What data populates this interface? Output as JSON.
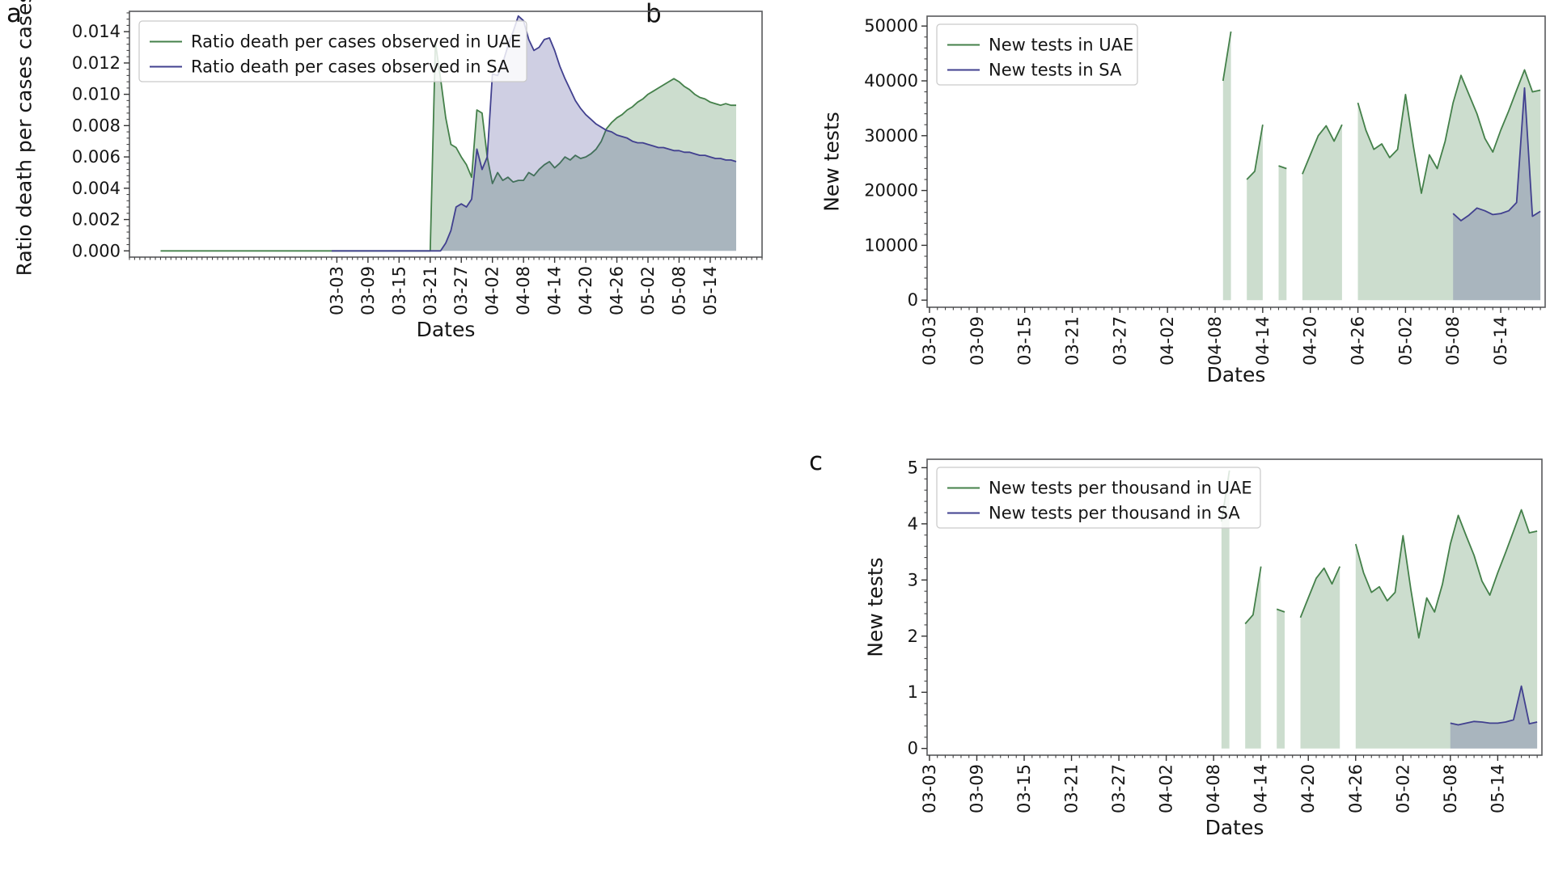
{
  "figure": {
    "background": "#ffffff",
    "panels": [
      {
        "label": "a"
      },
      {
        "label": "b"
      },
      {
        "label": "c"
      }
    ]
  },
  "chart_data": [
    {
      "id": "a",
      "type": "area",
      "panel_label": "a",
      "xlabel": "Dates",
      "ylabel": "Ratio death per cases cases",
      "x_unit": "day index, day 0 = 2020-01-26",
      "xlim": [
        -3,
        119
      ],
      "ylim": [
        -0.0004,
        0.0153
      ],
      "grid": false,
      "legend_position": "upper-left",
      "x_ticks": [
        {
          "i": 37,
          "label": "03-03"
        },
        {
          "i": 43,
          "label": "03-09"
        },
        {
          "i": 49,
          "label": "03-15"
        },
        {
          "i": 55,
          "label": "03-21"
        },
        {
          "i": 61,
          "label": "03-27"
        },
        {
          "i": 67,
          "label": "04-02"
        },
        {
          "i": 73,
          "label": "04-08"
        },
        {
          "i": 79,
          "label": "04-14"
        },
        {
          "i": 85,
          "label": "04-20"
        },
        {
          "i": 91,
          "label": "04-26"
        },
        {
          "i": 97,
          "label": "05-02"
        },
        {
          "i": 103,
          "label": "05-08"
        },
        {
          "i": 109,
          "label": "05-14"
        }
      ],
      "y_ticks": [
        {
          "v": 0,
          "label": "0.000"
        },
        {
          "v": 0.002,
          "label": "0.002"
        },
        {
          "v": 0.004,
          "label": "0.004"
        },
        {
          "v": 0.006,
          "label": "0.006"
        },
        {
          "v": 0.008,
          "label": "0.008"
        },
        {
          "v": 0.01,
          "label": "0.010"
        },
        {
          "v": 0.012,
          "label": "0.012"
        },
        {
          "v": 0.014,
          "label": "0.014"
        }
      ],
      "y_minor_step": 0.0004,
      "y_major_step": 0.002,
      "series": [
        {
          "key": "uae",
          "name": "Ratio death per cases observed in UAE",
          "color": "#44804a",
          "fill": "rgba(68,128,74,0.27)",
          "x0": 3,
          "values": [
            0,
            0,
            0,
            0,
            0,
            0,
            0,
            0,
            0,
            0,
            0,
            0,
            0,
            0,
            0,
            0,
            0,
            0,
            0,
            0,
            0,
            0,
            0,
            0,
            0,
            0,
            0,
            0,
            0,
            0,
            0,
            0,
            0,
            0,
            0,
            0,
            0,
            0,
            0,
            0,
            0,
            0,
            0,
            0,
            0,
            0,
            0,
            0,
            0,
            0,
            0,
            0,
            0,
            0.0133,
            0.011,
            0.0085,
            0.0068,
            0.0066,
            0.006,
            0.0055,
            0.0047,
            0.009,
            0.0088,
            0.006,
            0.0043,
            0.005,
            0.0045,
            0.0047,
            0.0044,
            0.0045,
            0.0045,
            0.005,
            0.0048,
            0.0052,
            0.0055,
            0.0057,
            0.0053,
            0.0056,
            0.006,
            0.0058,
            0.0061,
            0.0059,
            0.006,
            0.0062,
            0.0065,
            0.007,
            0.0078,
            0.0082,
            0.0085,
            0.0087,
            0.009,
            0.0092,
            0.0095,
            0.0097,
            0.01,
            0.0102,
            0.0104,
            0.0106,
            0.0108,
            0.011,
            0.0108,
            0.0105,
            0.0103,
            0.01,
            0.0098,
            0.0097,
            0.0095,
            0.0094,
            0.0093,
            0.0094,
            0.0093,
            0.0093
          ]
        },
        {
          "key": "sa",
          "name": "Ratio death per cases observed in SA",
          "color": "#41408f",
          "fill": "rgba(65,64,143,0.25)",
          "x0": 36,
          "values": [
            0,
            0,
            0,
            0,
            0,
            0,
            0,
            0,
            0,
            0,
            0,
            0,
            0,
            0,
            0,
            0,
            0,
            0,
            0,
            0,
            0,
            0,
            0.0005,
            0.0013,
            0.0028,
            0.003,
            0.0028,
            0.0033,
            0.0065,
            0.0052,
            0.006,
            0.0113,
            0.0112,
            0.012,
            0.0131,
            0.014,
            0.015,
            0.0147,
            0.0135,
            0.0128,
            0.013,
            0.0135,
            0.0136,
            0.0128,
            0.0118,
            0.011,
            0.0103,
            0.0096,
            0.0091,
            0.0087,
            0.0084,
            0.0081,
            0.0079,
            0.0077,
            0.0076,
            0.0074,
            0.0073,
            0.0072,
            0.007,
            0.0069,
            0.0069,
            0.0068,
            0.0067,
            0.0066,
            0.0066,
            0.0065,
            0.0064,
            0.0064,
            0.0063,
            0.0063,
            0.0062,
            0.0061,
            0.0061,
            0.006,
            0.0059,
            0.0059,
            0.0058,
            0.0058,
            0.0057
          ]
        }
      ]
    },
    {
      "id": "b",
      "type": "area",
      "panel_label": "b",
      "xlabel": "Dates",
      "ylabel": "New tests",
      "x_unit": "day index, day 0 = 2020-03-02",
      "xlim": [
        0.7,
        78.6
      ],
      "ylim": [
        -1300,
        51800
      ],
      "grid": false,
      "legend_position": "upper-left",
      "x_ticks": [
        {
          "i": 1,
          "label": "03-03"
        },
        {
          "i": 7,
          "label": "03-09"
        },
        {
          "i": 13,
          "label": "03-15"
        },
        {
          "i": 19,
          "label": "03-21"
        },
        {
          "i": 25,
          "label": "03-27"
        },
        {
          "i": 31,
          "label": "04-02"
        },
        {
          "i": 37,
          "label": "04-08"
        },
        {
          "i": 43,
          "label": "04-14"
        },
        {
          "i": 49,
          "label": "04-20"
        },
        {
          "i": 55,
          "label": "04-26"
        },
        {
          "i": 61,
          "label": "05-02"
        },
        {
          "i": 67,
          "label": "05-08"
        },
        {
          "i": 73,
          "label": "05-14"
        }
      ],
      "y_ticks": [
        {
          "v": 0,
          "label": "0"
        },
        {
          "v": 10000,
          "label": "10000"
        },
        {
          "v": 20000,
          "label": "20000"
        },
        {
          "v": 30000,
          "label": "30000"
        },
        {
          "v": 40000,
          "label": "40000"
        },
        {
          "v": 50000,
          "label": "50000"
        }
      ],
      "y_minor_step": 2000,
      "y_major_step": 10000,
      "series": [
        {
          "key": "uae",
          "name": "New tests in UAE",
          "color": "#44804a",
          "fill": "rgba(68,128,74,0.27)",
          "x0": 38,
          "values": [
            40000,
            49000,
            null,
            22000,
            23500,
            32000,
            null,
            24500,
            24000,
            null,
            23000,
            26500,
            30000,
            31800,
            29000,
            32000,
            null,
            36000,
            31000,
            27500,
            28500,
            26000,
            27500,
            37500,
            28000,
            19500,
            26500,
            24000,
            29000,
            36000,
            41000,
            37500,
            34000,
            29500,
            27000,
            31000,
            34500,
            38300,
            42000,
            38000,
            38300
          ]
        },
        {
          "key": "sa",
          "name": "New tests in SA",
          "color": "#41408f",
          "fill": "rgba(65,64,143,0.25)",
          "x0": 67,
          "values": [
            15800,
            14500,
            15500,
            16800,
            16300,
            15600,
            15800,
            16300,
            17800,
            38700,
            15300,
            16200
          ]
        }
      ]
    },
    {
      "id": "c",
      "type": "area",
      "panel_label": "c",
      "xlabel": "Dates",
      "ylabel": "New tests",
      "x_unit": "day index, day 0 = 2020-03-02",
      "xlim": [
        0.7,
        78.6
      ],
      "ylim": [
        -0.12,
        5.15
      ],
      "grid": false,
      "legend_position": "upper-left",
      "x_ticks": [
        {
          "i": 1,
          "label": "03-03"
        },
        {
          "i": 7,
          "label": "03-09"
        },
        {
          "i": 13,
          "label": "03-15"
        },
        {
          "i": 19,
          "label": "03-21"
        },
        {
          "i": 25,
          "label": "03-27"
        },
        {
          "i": 31,
          "label": "04-02"
        },
        {
          "i": 37,
          "label": "04-08"
        },
        {
          "i": 43,
          "label": "04-14"
        },
        {
          "i": 49,
          "label": "04-20"
        },
        {
          "i": 55,
          "label": "04-26"
        },
        {
          "i": 61,
          "label": "05-02"
        },
        {
          "i": 67,
          "label": "05-08"
        },
        {
          "i": 73,
          "label": "05-14"
        }
      ],
      "y_ticks": [
        {
          "v": 0,
          "label": "0"
        },
        {
          "v": 1,
          "label": "1"
        },
        {
          "v": 2,
          "label": "2"
        },
        {
          "v": 3,
          "label": "3"
        },
        {
          "v": 4,
          "label": "4"
        },
        {
          "v": 5,
          "label": "5"
        }
      ],
      "y_minor_step": 0.2,
      "y_major_step": 1,
      "series": [
        {
          "key": "uae",
          "name": "New tests per thousand in UAE",
          "color": "#44804a",
          "fill": "rgba(68,128,74,0.27)",
          "x0": 38,
          "values": [
            4.04,
            4.95,
            null,
            2.22,
            2.38,
            3.24,
            null,
            2.48,
            2.43,
            null,
            2.33,
            2.68,
            3.03,
            3.21,
            2.93,
            3.24,
            null,
            3.64,
            3.13,
            2.78,
            2.88,
            2.63,
            2.78,
            3.79,
            2.83,
            1.97,
            2.68,
            2.43,
            2.93,
            3.64,
            4.15,
            3.79,
            3.44,
            2.98,
            2.73,
            3.13,
            3.49,
            3.87,
            4.25,
            3.84,
            3.87
          ]
        },
        {
          "key": "sa",
          "name": "New tests per thousand in SA",
          "color": "#41408f",
          "fill": "rgba(65,64,143,0.25)",
          "x0": 67,
          "values": [
            0.45,
            0.42,
            0.45,
            0.48,
            0.47,
            0.45,
            0.45,
            0.47,
            0.51,
            1.11,
            0.44,
            0.47
          ]
        }
      ]
    }
  ]
}
